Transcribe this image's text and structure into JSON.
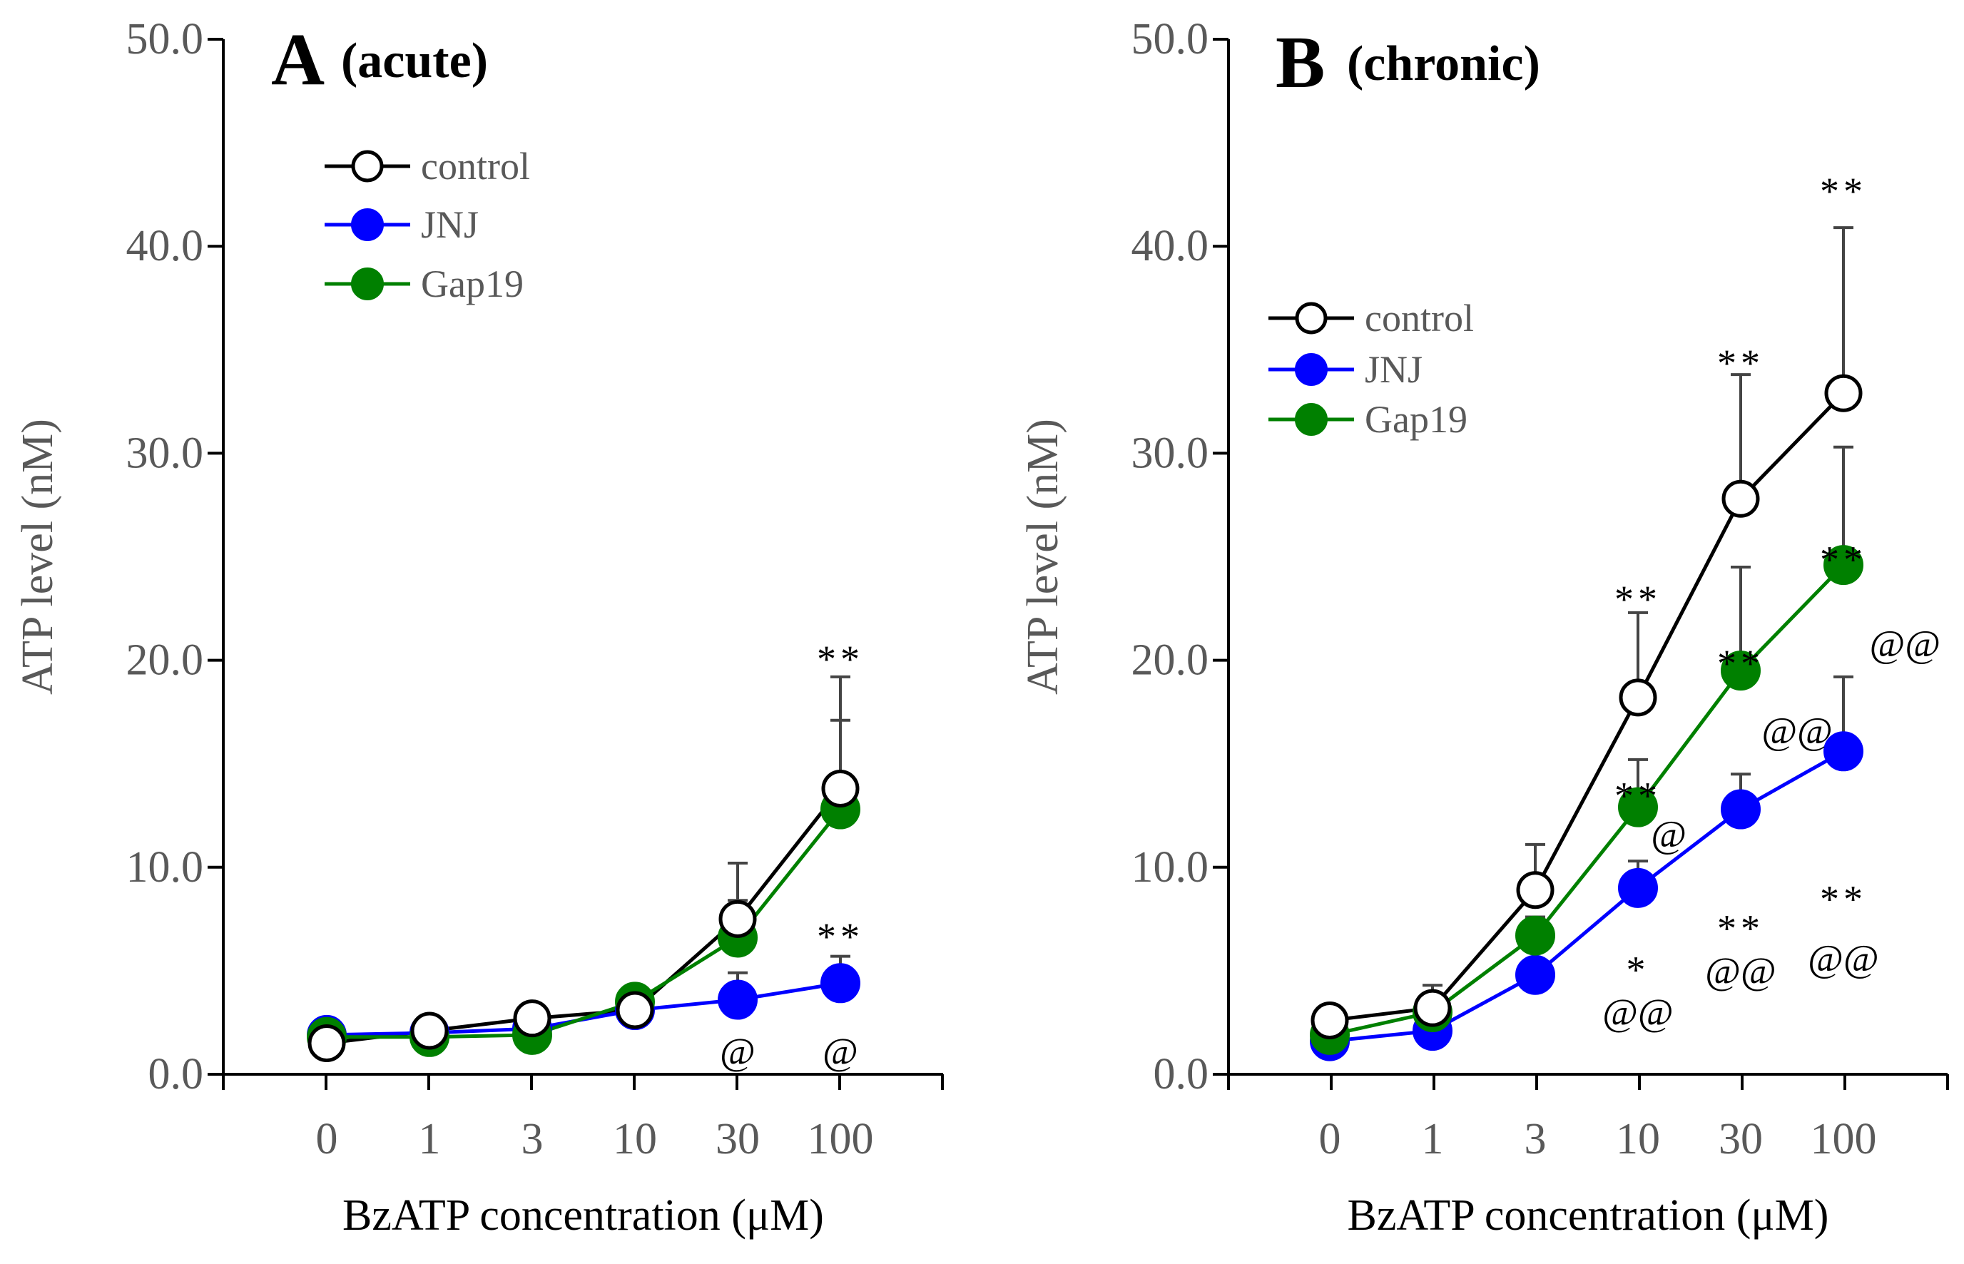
{
  "chart_data": [
    {
      "type": "line",
      "panel": "A",
      "title_letter": "A",
      "title_sub": "(acute)",
      "xlabel": "BzATP concentration (μM)",
      "ylabel": "ATP level (nM)",
      "ylim": [
        0,
        50
      ],
      "yticks": [
        "0.0",
        "10.0",
        "20.0",
        "30.0",
        "40.0",
        "50.0"
      ],
      "categories": [
        "0",
        "1",
        "3",
        "10",
        "30",
        "100"
      ],
      "legend_position": "top-left",
      "series": [
        {
          "name": "control",
          "color": "#000000",
          "fill": "#ffffff",
          "values": [
            1.5,
            2.1,
            2.7,
            3.1,
            7.5,
            13.8
          ],
          "errors": [
            0.3,
            0.4,
            0.6,
            1.0,
            2.7,
            5.4
          ]
        },
        {
          "name": "JNJ",
          "color": "#0000ff",
          "fill": "#0000ff",
          "values": [
            1.9,
            2.0,
            2.2,
            3.1,
            3.6,
            4.4
          ],
          "errors": [
            0.2,
            0.3,
            0.4,
            0.8,
            1.3,
            1.3
          ]
        },
        {
          "name": "Gap19",
          "color": "#008000",
          "fill": "#008000",
          "values": [
            1.8,
            1.8,
            1.9,
            3.5,
            6.6,
            12.8
          ],
          "errors": [
            0.2,
            0.3,
            0.4,
            0.5,
            1.8,
            4.3
          ]
        }
      ],
      "annotations": [
        {
          "text": "**",
          "x": "100",
          "y": 20.4,
          "kind": "star"
        },
        {
          "text": "**",
          "x": "100",
          "y": 7.0,
          "kind": "star"
        },
        {
          "text": "@",
          "x": "30",
          "y": 1.1,
          "kind": "at"
        },
        {
          "text": "@",
          "x": "100",
          "y": 1.1,
          "kind": "at"
        }
      ]
    },
    {
      "type": "line",
      "panel": "B",
      "title_letter": "B",
      "title_sub": "(chronic)",
      "xlabel": "BzATP concentration (μM)",
      "ylabel": "ATP level (nM)",
      "ylim": [
        0,
        50
      ],
      "yticks": [
        "0.0",
        "10.0",
        "20.0",
        "30.0",
        "40.0",
        "50.0"
      ],
      "categories": [
        "0",
        "1",
        "3",
        "10",
        "30",
        "100"
      ],
      "legend_position": "upper-left",
      "series": [
        {
          "name": "control",
          "color": "#000000",
          "fill": "#ffffff",
          "values": [
            2.6,
            3.2,
            8.9,
            18.2,
            27.8,
            32.9
          ],
          "errors": [
            0.3,
            1.1,
            2.2,
            4.1,
            6.0,
            8.0
          ]
        },
        {
          "name": "JNJ",
          "color": "#0000ff",
          "fill": "#0000ff",
          "values": [
            1.6,
            2.1,
            4.8,
            9.0,
            12.8,
            15.6
          ],
          "errors": [
            0.3,
            0.4,
            0.6,
            1.3,
            1.7,
            3.6
          ]
        },
        {
          "name": "Gap19",
          "color": "#008000",
          "fill": "#008000",
          "values": [
            1.9,
            3.0,
            6.7,
            12.9,
            19.5,
            24.6
          ],
          "errors": [
            0.3,
            0.5,
            0.9,
            2.3,
            5.0,
            5.7
          ]
        }
      ],
      "annotations": [
        {
          "text": "**",
          "x": "100",
          "y": 43.0,
          "kind": "star"
        },
        {
          "text": "**",
          "x": "30",
          "y": 34.7,
          "kind": "star"
        },
        {
          "text": "**",
          "x": "10",
          "y": 23.3,
          "kind": "star"
        },
        {
          "text": "**",
          "x": "100",
          "y": 25.2,
          "kind": "star"
        },
        {
          "text": "**",
          "x": "30",
          "y": 20.2,
          "kind": "star"
        },
        {
          "text": "@@",
          "x": "100",
          "y": 20.8,
          "kind": "at",
          "dx": 0.6
        },
        {
          "text": "@@",
          "x": "30",
          "y": 16.6,
          "kind": "at",
          "dx": 0.55
        },
        {
          "text": "**",
          "x": "10",
          "y": 13.8,
          "kind": "star"
        },
        {
          "text": "@",
          "x": "10",
          "y": 11.6,
          "kind": "at",
          "dx": 0.3
        },
        {
          "text": "**",
          "x": "100",
          "y": 8.8,
          "kind": "star"
        },
        {
          "text": "**",
          "x": "30",
          "y": 7.4,
          "kind": "star"
        },
        {
          "text": "@@",
          "x": "100",
          "y": 5.6,
          "kind": "at"
        },
        {
          "text": "@@",
          "x": "30",
          "y": 5.0,
          "kind": "at"
        },
        {
          "text": "*",
          "x": "10",
          "y": 5.4,
          "kind": "star"
        },
        {
          "text": "@@",
          "x": "10",
          "y": 3.0,
          "kind": "at"
        }
      ]
    }
  ]
}
